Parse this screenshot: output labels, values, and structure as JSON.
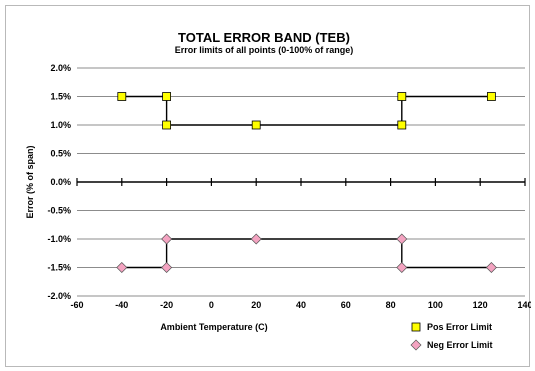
{
  "chart_data": {
    "type": "line",
    "title": "TOTAL ERROR BAND (TEB)",
    "subtitle": "Error limits of all points (0-100% of range)",
    "xlabel": "Ambient Temperature (C)",
    "ylabel": "Error (% of span)",
    "xlim": [
      -60,
      140
    ],
    "ylim": [
      -2.0,
      2.0
    ],
    "x_ticks": [
      -60,
      -40,
      -20,
      0,
      20,
      40,
      60,
      80,
      100,
      120,
      140
    ],
    "y_ticks": [
      2.0,
      1.5,
      1.0,
      0.5,
      0.0,
      -0.5,
      -1.0,
      -1.5,
      -2.0
    ],
    "x_tick_labels": [
      "-60",
      "-40",
      "-20",
      "0",
      "20",
      "40",
      "60",
      "80",
      "100",
      "120",
      "140"
    ],
    "y_tick_labels": [
      "2.0%",
      "1.5%",
      "1.0%",
      "0.5%",
      "0.0%",
      "-0.5%",
      "-1.0%",
      "-1.5%",
      "-2.0%"
    ],
    "grid": true,
    "legend_position": "bottom-right",
    "series": [
      {
        "name": "Pos Error Limit",
        "marker": "square",
        "color": "#ffff00",
        "line_color": "#000000",
        "points": [
          [
            -40,
            1.5
          ],
          [
            -20,
            1.5
          ],
          [
            -20,
            1.0
          ],
          [
            20,
            1.0
          ],
          [
            85,
            1.0
          ],
          [
            85,
            1.5
          ],
          [
            125,
            1.5
          ]
        ]
      },
      {
        "name": "Neg Error Limit",
        "marker": "diamond",
        "color": "#f4a3c1",
        "line_color": "#000000",
        "points": [
          [
            -40,
            -1.5
          ],
          [
            -20,
            -1.5
          ],
          [
            -20,
            -1.0
          ],
          [
            20,
            -1.0
          ],
          [
            85,
            -1.0
          ],
          [
            85,
            -1.5
          ],
          [
            125,
            -1.5
          ]
        ]
      }
    ]
  }
}
